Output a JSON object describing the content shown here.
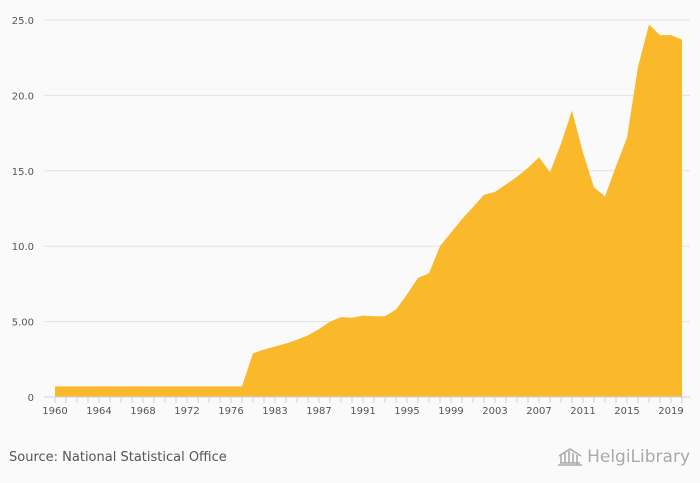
{
  "chart_data": {
    "type": "area",
    "title": "",
    "xlabel": "",
    "ylabel": "",
    "ylim": [
      0,
      25
    ],
    "grid": true,
    "color": "#f9b92a",
    "y_ticks": [
      {
        "value": 0,
        "label": "0"
      },
      {
        "value": 5,
        "label": "5.00"
      },
      {
        "value": 10,
        "label": "10.0"
      },
      {
        "value": 15,
        "label": "15.0"
      },
      {
        "value": 20,
        "label": "20.0"
      },
      {
        "value": 25,
        "label": "25.0"
      }
    ],
    "x_tick_labels": [
      "1960",
      "1964",
      "1968",
      "1972",
      "1976",
      "1983",
      "1987",
      "1991",
      "1995",
      "1999",
      "2003",
      "2007",
      "2011",
      "2015",
      "2019"
    ],
    "categories": [
      "1960",
      "1961",
      "1962",
      "1963",
      "1964",
      "1965",
      "1966",
      "1967",
      "1968",
      "1969",
      "1970",
      "1971",
      "1972",
      "1973",
      "1974",
      "1975",
      "1976",
      "1977",
      "1980",
      "1982",
      "1983",
      "1984",
      "1985",
      "1986",
      "1987",
      "1988",
      "1989",
      "1990",
      "1991",
      "1992",
      "1993",
      "1994",
      "1995",
      "1996",
      "1997",
      "1998",
      "1999",
      "2000",
      "2001",
      "2002",
      "2003",
      "2004",
      "2005",
      "2006",
      "2007",
      "2008",
      "2009",
      "2010",
      "2011",
      "2012",
      "2013",
      "2014",
      "2015",
      "2016",
      "2017",
      "2018",
      "2019",
      "2020"
    ],
    "values": [
      0.7,
      0.7,
      0.7,
      0.7,
      0.7,
      0.7,
      0.7,
      0.7,
      0.7,
      0.7,
      0.7,
      0.7,
      0.7,
      0.7,
      0.7,
      0.7,
      0.7,
      0.7,
      2.9,
      3.15,
      3.35,
      3.55,
      3.8,
      4.1,
      4.5,
      5.0,
      5.3,
      5.25,
      5.4,
      5.35,
      5.35,
      5.8,
      6.8,
      7.9,
      8.2,
      10.0,
      10.9,
      11.8,
      12.6,
      13.4,
      13.6,
      14.1,
      14.6,
      15.2,
      15.9,
      14.9,
      16.8,
      19.0,
      16.2,
      13.9,
      13.3,
      15.3,
      17.2,
      21.9,
      24.7,
      24.0,
      24.0,
      23.7
    ]
  },
  "footer": {
    "source": "Source: National Statistical Office",
    "logo_text": "HelgiLibrary"
  }
}
